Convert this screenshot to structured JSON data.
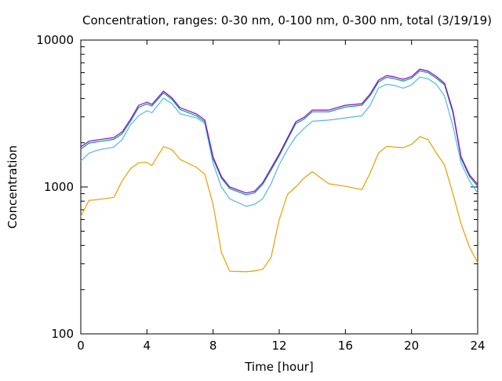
{
  "chart_data": {
    "type": "line",
    "title": "Concentration, ranges: 0-30 nm, 0-100 nm, 0-300 nm, total (3/19/19)",
    "xlabel": "Time [hour]",
    "ylabel": "Concentration",
    "xlim": [
      0,
      24
    ],
    "ylim": [
      100,
      10000
    ],
    "yscale": "log",
    "xticks": [
      "0",
      "4",
      "8",
      "12",
      "16",
      "20",
      "24"
    ],
    "yticks": [
      "100",
      "1000",
      "10000"
    ],
    "x": [
      0,
      0.5,
      1,
      2,
      2.5,
      3,
      3.5,
      4,
      4.3,
      5,
      5.5,
      6,
      7,
      7.5,
      8,
      8.5,
      9,
      10,
      10.5,
      11,
      11.5,
      12,
      12.5,
      13,
      13.5,
      14,
      15,
      16,
      17,
      17.5,
      18,
      18.5,
      19,
      19.5,
      20,
      20.5,
      21,
      21.5,
      22,
      22.5,
      23,
      23.5,
      24
    ],
    "series": [
      {
        "name": "0-30 nm",
        "color": "#e69f00",
        "values": [
          630,
          810,
          820,
          850,
          1100,
          1330,
          1460,
          1470,
          1400,
          1880,
          1800,
          1540,
          1360,
          1220,
          760,
          360,
          267,
          265,
          268,
          275,
          330,
          600,
          890,
          1000,
          1150,
          1270,
          1050,
          1010,
          960,
          1250,
          1700,
          1890,
          1870,
          1850,
          1950,
          2200,
          2100,
          1700,
          1410,
          900,
          560,
          390,
          305
        ]
      },
      {
        "name": "0-100 nm",
        "color": "#56b4e9",
        "values": [
          1500,
          1700,
          1780,
          1870,
          2100,
          2650,
          3050,
          3300,
          3200,
          4020,
          3700,
          3150,
          2950,
          2700,
          1450,
          1000,
          830,
          740,
          760,
          830,
          1050,
          1420,
          1800,
          2200,
          2500,
          2800,
          2850,
          2950,
          3050,
          3600,
          4720,
          5000,
          4900,
          4700,
          4950,
          5600,
          5450,
          5000,
          4150,
          2600,
          1450,
          1100,
          910
        ]
      },
      {
        "name": "0-300 nm",
        "color": "#009e73",
        "values": [
          1810,
          1990,
          2030,
          2110,
          2300,
          2800,
          3480,
          3680,
          3550,
          4370,
          3950,
          3370,
          3050,
          2780,
          1550,
          1150,
          975,
          885,
          910,
          1040,
          1300,
          1630,
          2100,
          2700,
          2900,
          3250,
          3250,
          3500,
          3600,
          4200,
          5180,
          5580,
          5450,
          5250,
          5500,
          6170,
          6000,
          5500,
          4950,
          3200,
          1560,
          1180,
          1010
        ]
      },
      {
        "name": "total",
        "color": "#9400d3",
        "values": [
          1875,
          2050,
          2090,
          2170,
          2370,
          2880,
          3600,
          3780,
          3650,
          4490,
          4050,
          3470,
          3140,
          2860,
          1600,
          1180,
          1000,
          910,
          935,
          1070,
          1340,
          1680,
          2160,
          2780,
          2980,
          3340,
          3340,
          3600,
          3690,
          4300,
          5330,
          5740,
          5600,
          5400,
          5650,
          6340,
          6150,
          5650,
          5080,
          3300,
          1600,
          1210,
          1040
        ]
      }
    ],
    "grid": false,
    "legend": "none"
  }
}
